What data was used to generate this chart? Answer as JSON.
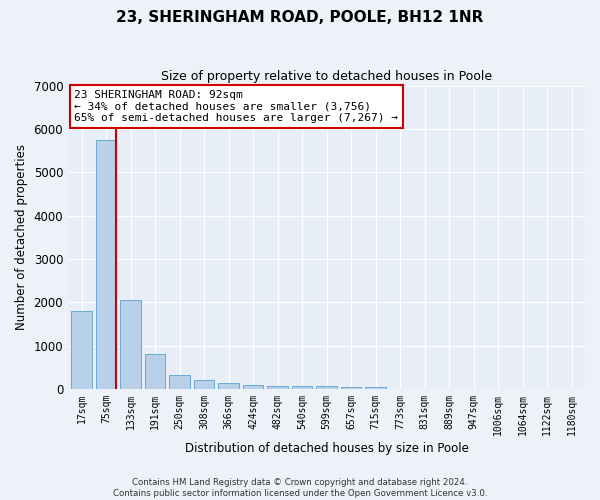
{
  "title_line1": "23, SHERINGHAM ROAD, POOLE, BH12 1NR",
  "title_line2": "Size of property relative to detached houses in Poole",
  "xlabel": "Distribution of detached houses by size in Poole",
  "ylabel": "Number of detached properties",
  "categories": [
    "17sqm",
    "75sqm",
    "133sqm",
    "191sqm",
    "250sqm",
    "308sqm",
    "366sqm",
    "424sqm",
    "482sqm",
    "540sqm",
    "599sqm",
    "657sqm",
    "715sqm",
    "773sqm",
    "831sqm",
    "889sqm",
    "947sqm",
    "1006sqm",
    "1064sqm",
    "1122sqm",
    "1180sqm"
  ],
  "values": [
    1800,
    5750,
    2050,
    820,
    330,
    215,
    140,
    105,
    80,
    65,
    60,
    58,
    55,
    0,
    0,
    0,
    0,
    0,
    0,
    0,
    0
  ],
  "bar_color": "#b8d0e8",
  "bar_edge_color": "#6aaad4",
  "annotation_text": "23 SHERINGHAM ROAD: 92sqm\n← 34% of detached houses are smaller (3,756)\n65% of semi-detached houses are larger (7,267) →",
  "annotation_box_color": "#ffffff",
  "annotation_box_edgecolor": "#cc0000",
  "property_line_color": "#cc0000",
  "ylim": [
    0,
    7000
  ],
  "yticks": [
    0,
    1000,
    2000,
    3000,
    4000,
    5000,
    6000,
    7000
  ],
  "background_color": "#e8eef8",
  "grid_color": "#ffffff",
  "footer_line1": "Contains HM Land Registry data © Crown copyright and database right 2024.",
  "footer_line2": "Contains public sector information licensed under the Open Government Licence v3.0."
}
